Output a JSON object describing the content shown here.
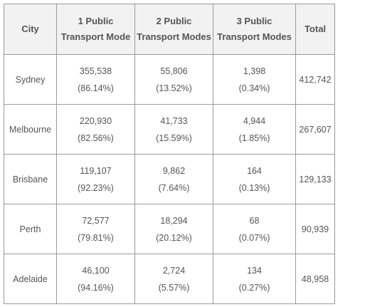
{
  "table": {
    "headers": [
      {
        "line1": "City",
        "line2": ""
      },
      {
        "line1": "1 Public",
        "line2": "Transport Mode"
      },
      {
        "line1": "2 Public",
        "line2": "Transport Modes"
      },
      {
        "line1": "3 Public",
        "line2": "Transport Modes"
      },
      {
        "line1": "Total",
        "line2": ""
      }
    ],
    "rows": [
      {
        "city": "Sydney",
        "m1": {
          "count": "355,538",
          "pct": "(86.14%)"
        },
        "m2": {
          "count": "55,806",
          "pct": "(13.52%)"
        },
        "m3": {
          "count": "1,398",
          "pct": "(0.34%)"
        },
        "total": "412,742"
      },
      {
        "city": "Melbourne",
        "m1": {
          "count": "220,930",
          "pct": "(82.56%)"
        },
        "m2": {
          "count": "41,733",
          "pct": "(15.59%)"
        },
        "m3": {
          "count": "4,944",
          "pct": "(1.85%)"
        },
        "total": "267,607"
      },
      {
        "city": "Brisbane",
        "m1": {
          "count": "119,107",
          "pct": "(92.23%)"
        },
        "m2": {
          "count": "9,862",
          "pct": "(7.64%)"
        },
        "m3": {
          "count": "164",
          "pct": "(0.13%)"
        },
        "total": "129,133"
      },
      {
        "city": "Perth",
        "m1": {
          "count": "72,577",
          "pct": "(79.81%)"
        },
        "m2": {
          "count": "18,294",
          "pct": "(20.12%)"
        },
        "m3": {
          "count": "68",
          "pct": "(0.07%)"
        },
        "total": "90,939"
      },
      {
        "city": "Adelaide",
        "m1": {
          "count": "46,100",
          "pct": "(94.16%)"
        },
        "m2": {
          "count": "2,724",
          "pct": "(5.57%)"
        },
        "m3": {
          "count": "134",
          "pct": "(0.27%)"
        },
        "total": "48,958"
      }
    ]
  }
}
